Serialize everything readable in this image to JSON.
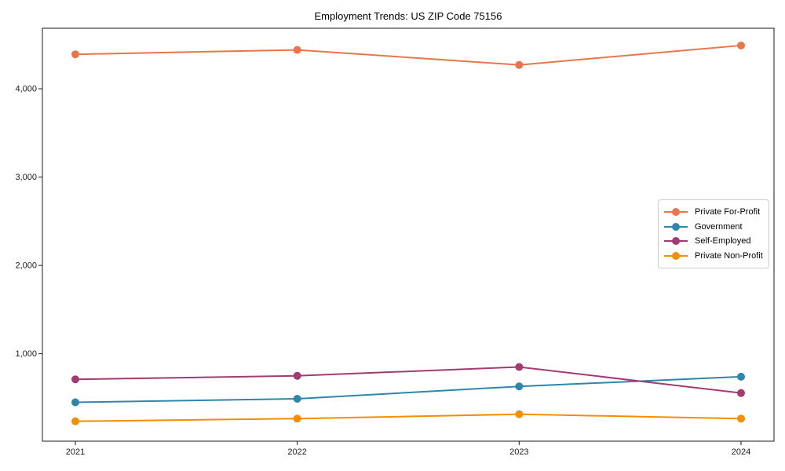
{
  "chart_data": {
    "type": "line",
    "title": "Employment Trends: US ZIP Code 75156",
    "x": [
      2021,
      2022,
      2023,
      2024
    ],
    "x_tick_labels": [
      "2021",
      "2022",
      "2023",
      "2024"
    ],
    "y_ticks": [
      {
        "value": 1000,
        "label": "1,000"
      },
      {
        "value": 2000,
        "label": "2,000"
      },
      {
        "value": 3000,
        "label": "3,000"
      },
      {
        "value": 4000,
        "label": "4,000"
      }
    ],
    "ylim": [
      10,
      4685
    ],
    "grid": false,
    "legend_position": "center right",
    "series": [
      {
        "name": "Private For-Profit",
        "color": "#E8764A",
        "values": [
          4390,
          4440,
          4270,
          4490
        ]
      },
      {
        "name": "Government",
        "color": "#2E86AB",
        "values": [
          450,
          490,
          630,
          740
        ]
      },
      {
        "name": "Self-Employed",
        "color": "#A23B72",
        "values": [
          710,
          750,
          850,
          555
        ]
      },
      {
        "name": "Private Non-Profit",
        "color": "#F18F01",
        "values": [
          235,
          265,
          315,
          265
        ]
      }
    ],
    "axis_color": "#1a1a1a",
    "tick_font_size": 11
  }
}
